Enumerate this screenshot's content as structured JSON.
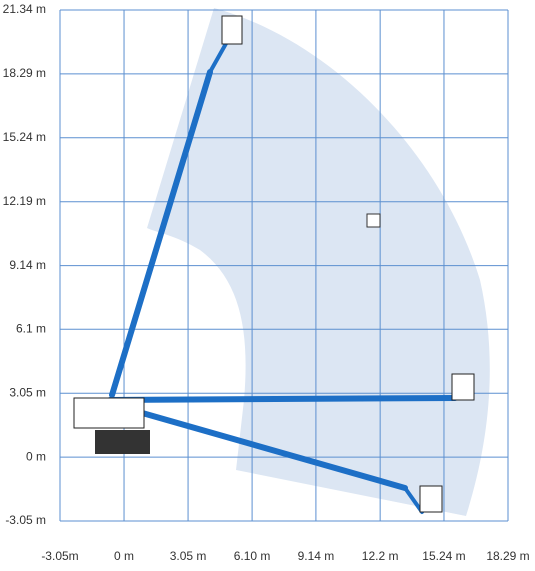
{
  "chart_data": {
    "type": "reach-diagram",
    "xlim": [
      -3.05,
      18.29
    ],
    "ylim": [
      -3.05,
      21.34
    ],
    "xticks": [
      {
        "value": -3.05,
        "label": "-3.05m"
      },
      {
        "value": 0,
        "label": "0 m"
      },
      {
        "value": 3.05,
        "label": "3.05 m"
      },
      {
        "value": 6.1,
        "label": "6.10 m"
      },
      {
        "value": 9.14,
        "label": "9.14 m"
      },
      {
        "value": 12.2,
        "label": "12.2 m"
      },
      {
        "value": 15.24,
        "label": "15.24 m"
      },
      {
        "value": 18.29,
        "label": "18.29 m"
      }
    ],
    "yticks": [
      {
        "value": -3.05,
        "label": "-3.05 m"
      },
      {
        "value": 0,
        "label": "0 m"
      },
      {
        "value": 3.05,
        "label": "3.05 m"
      },
      {
        "value": 6.1,
        "label": "6.1 m"
      },
      {
        "value": 9.14,
        "label": "9.14 m"
      },
      {
        "value": 12.19,
        "label": "12.19 m"
      },
      {
        "value": 15.24,
        "label": "15.24 m"
      },
      {
        "value": 18.29,
        "label": "18.29 m"
      },
      {
        "value": 21.34,
        "label": "21.34 m"
      }
    ],
    "grid": true
  }
}
